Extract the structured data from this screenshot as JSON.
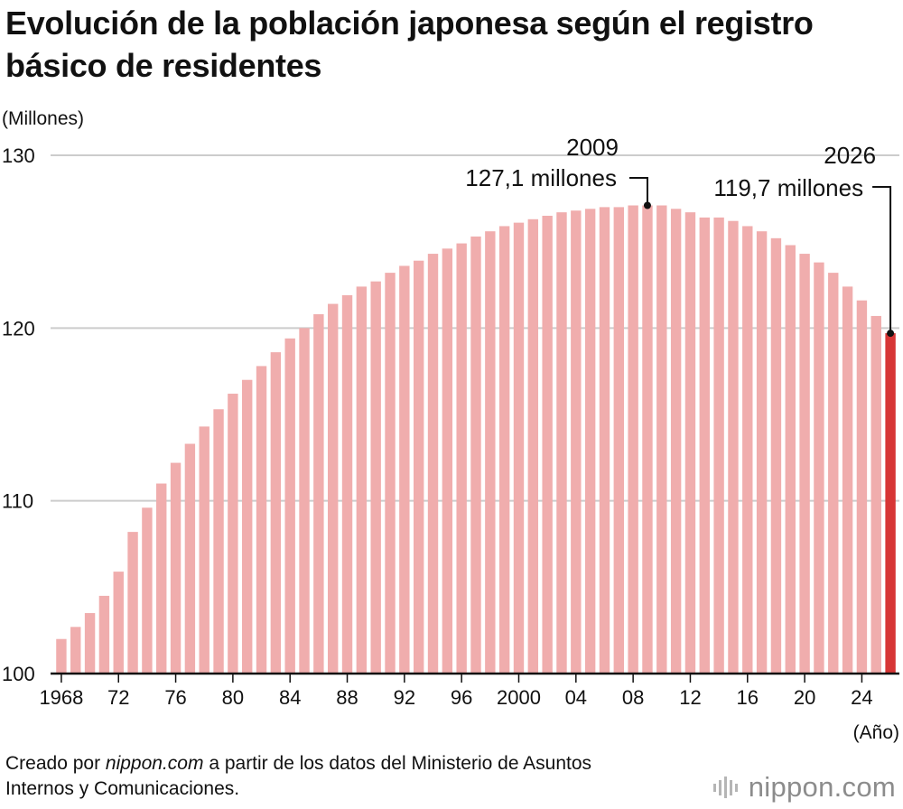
{
  "title_line1": "Evolución de la población japonesa según el registro",
  "title_line2": "básico de residentes",
  "credit_prefix": "Creado por ",
  "credit_source": "nippon.com",
  "credit_suffix": " a partir de los datos del Ministerio de Asuntos Internos y Comunicaciones.",
  "logo_text": "nippon.com",
  "colors": {
    "bar": "#f0adad",
    "highlight": "#d73535",
    "grid": "#cccccc",
    "axis": "#111111"
  },
  "chart_data": {
    "type": "bar",
    "unit_label": "(Millones)",
    "xlabel": "(Año)",
    "ylim": [
      100,
      130
    ],
    "yticks": [
      100,
      110,
      120,
      130
    ],
    "grid": true,
    "x_tick_labels": [
      {
        "year": 1968,
        "label": "1968"
      },
      {
        "year": 1972,
        "label": "72"
      },
      {
        "year": 1976,
        "label": "76"
      },
      {
        "year": 1980,
        "label": "80"
      },
      {
        "year": 1984,
        "label": "84"
      },
      {
        "year": 1988,
        "label": "88"
      },
      {
        "year": 1992,
        "label": "92"
      },
      {
        "year": 1996,
        "label": "96"
      },
      {
        "year": 2000,
        "label": "2000"
      },
      {
        "year": 2004,
        "label": "04"
      },
      {
        "year": 2008,
        "label": "08"
      },
      {
        "year": 2012,
        "label": "12"
      },
      {
        "year": 2016,
        "label": "16"
      },
      {
        "year": 2020,
        "label": "20"
      },
      {
        "year": 2024,
        "label": "24"
      }
    ],
    "years": [
      1968,
      1969,
      1970,
      1971,
      1972,
      1973,
      1974,
      1975,
      1976,
      1977,
      1978,
      1979,
      1980,
      1981,
      1982,
      1983,
      1984,
      1985,
      1986,
      1987,
      1988,
      1989,
      1990,
      1991,
      1992,
      1993,
      1994,
      1995,
      1996,
      1997,
      1998,
      1999,
      2000,
      2001,
      2002,
      2003,
      2004,
      2005,
      2006,
      2007,
      2008,
      2009,
      2010,
      2011,
      2012,
      2013,
      2014,
      2015,
      2016,
      2017,
      2018,
      2019,
      2020,
      2021,
      2022,
      2023,
      2024,
      2025,
      2026
    ],
    "values": [
      102.0,
      102.7,
      103.5,
      104.5,
      105.9,
      108.2,
      109.6,
      111.0,
      112.2,
      113.3,
      114.3,
      115.3,
      116.2,
      117.0,
      117.8,
      118.6,
      119.4,
      120.0,
      120.8,
      121.4,
      121.9,
      122.4,
      122.7,
      123.2,
      123.6,
      123.9,
      124.3,
      124.6,
      124.9,
      125.3,
      125.6,
      125.9,
      126.1,
      126.3,
      126.5,
      126.7,
      126.8,
      126.9,
      127.0,
      127.0,
      127.1,
      127.1,
      127.1,
      126.9,
      126.7,
      126.4,
      126.4,
      126.2,
      125.9,
      125.6,
      125.2,
      124.8,
      124.3,
      123.8,
      123.2,
      122.4,
      121.6,
      120.7,
      119.7
    ],
    "highlight_year": 2026,
    "annotations": [
      {
        "year": 2009,
        "value": 127.1,
        "year_label": "2009",
        "value_label": "127,1 millones"
      },
      {
        "year": 2026,
        "value": 119.7,
        "year_label": "2026",
        "value_label": "119,7 millones"
      }
    ]
  }
}
